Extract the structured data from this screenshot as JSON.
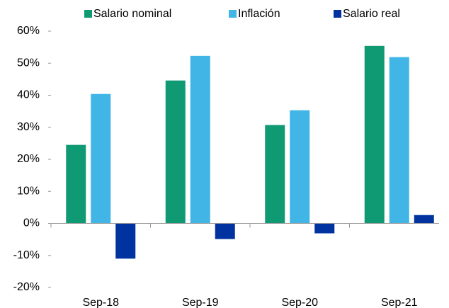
{
  "chart_data": {
    "type": "bar",
    "categories": [
      "Sep-18",
      "Sep-19",
      "Sep-20",
      "Sep-21"
    ],
    "series": [
      {
        "name": "Salario nominal",
        "color": "#0f9a74",
        "values": [
          24.5,
          44.6,
          30.7,
          55.4
        ]
      },
      {
        "name": "Inflación",
        "color": "#41b6e6",
        "values": [
          40.4,
          52.3,
          35.3,
          51.9
        ]
      },
      {
        "name": "Salario real",
        "color": "#0033a0",
        "values": [
          -11.0,
          -4.9,
          -3.1,
          2.6
        ]
      }
    ],
    "ylim": [
      -20,
      60
    ],
    "yticks": [
      {
        "value": -20,
        "label": "-20%"
      },
      {
        "value": -10,
        "label": "-10%"
      },
      {
        "value": 0,
        "label": "0%"
      },
      {
        "value": 10,
        "label": "10%"
      },
      {
        "value": 20,
        "label": "20%"
      },
      {
        "value": 30,
        "label": "30%"
      },
      {
        "value": 40,
        "label": "40%"
      },
      {
        "value": 50,
        "label": "50%"
      },
      {
        "value": 60,
        "label": "60%"
      }
    ],
    "legend": "top"
  }
}
